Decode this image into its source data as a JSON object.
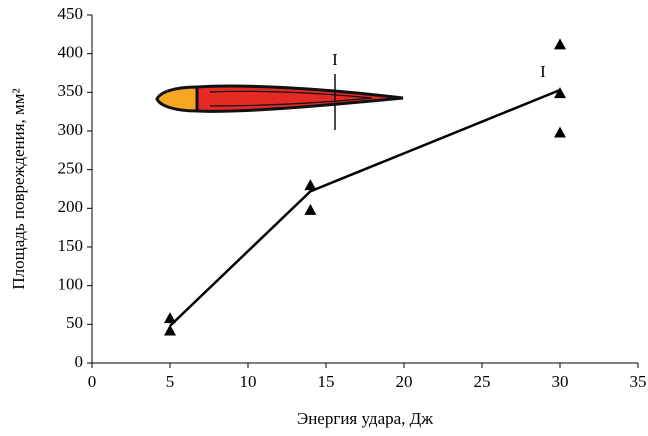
{
  "chart_data": {
    "type": "scatter",
    "xlabel": "Энергия удара, Дж",
    "ylabel": "Площадь повреждения, мм²",
    "xlim": [
      0,
      35
    ],
    "xticks": [
      0,
      5,
      10,
      15,
      20,
      25,
      30,
      35
    ],
    "ylim": [
      0,
      450
    ],
    "yticks": [
      0,
      50,
      100,
      150,
      200,
      250,
      300,
      350,
      400,
      450
    ],
    "color": "#000000",
    "x": [
      5,
      5,
      14,
      14,
      30,
      30,
      30
    ],
    "values": [
      58,
      42,
      230,
      198,
      412,
      349,
      298
    ],
    "line": {
      "x": [
        5,
        14,
        30
      ],
      "values": [
        48,
        222,
        353
      ]
    },
    "annotations": [
      "I",
      "I"
    ]
  }
}
